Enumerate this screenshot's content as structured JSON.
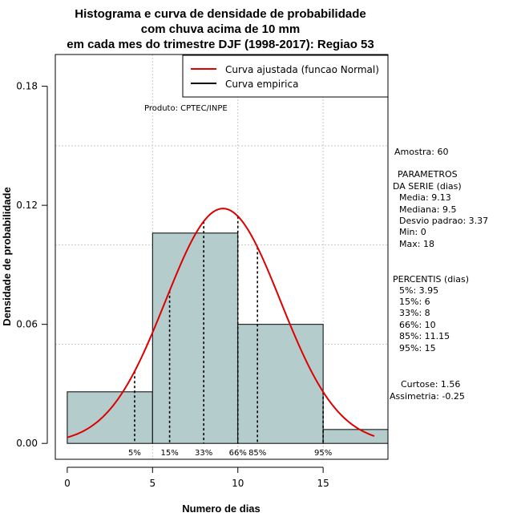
{
  "chart_data": {
    "type": "bar",
    "title_lines": [
      "Histograma e curva de densidade de probabilidade",
      "com chuva acima de 10 mm",
      "em cada mes do trimestre DJF (1998-2017): Regiao 53"
    ],
    "xlabel": "Numero de dias",
    "ylabel": "Densidade de probabilidade",
    "xlim": [
      -0.7,
      18.8
    ],
    "ylim": [
      -0.008,
      0.196
    ],
    "x_ticks": [
      0,
      5,
      10,
      15
    ],
    "y_ticks": [
      0.0,
      0.06,
      0.12,
      0.18
    ],
    "y_tick_labels": [
      "0.00",
      "0.06",
      "0.12",
      "0.18"
    ],
    "grid_x": [
      5,
      10,
      15
    ],
    "grid_y": [
      0.05,
      0.1,
      0.15
    ],
    "grid": true,
    "bins": [
      {
        "x0": 0,
        "x1": 5,
        "density": 0.026
      },
      {
        "x0": 5,
        "x1": 10,
        "density": 0.106
      },
      {
        "x0": 10,
        "x1": 15,
        "density": 0.06
      },
      {
        "x0": 15,
        "x1": 20,
        "density": 0.007
      }
    ],
    "normal_curve": {
      "mean": 9.13,
      "sd": 3.37,
      "x_from": 0,
      "x_to": 18
    },
    "percentile_lines": [
      {
        "label": "5%",
        "x": 3.95
      },
      {
        "label": "15%",
        "x": 6
      },
      {
        "label": "33%",
        "x": 8
      },
      {
        "label": "66%",
        "x": 10
      },
      {
        "label": "85%",
        "x": 11.15
      },
      {
        "label": "95%",
        "x": 15
      }
    ],
    "legend": {
      "position": "top-right",
      "entries": [
        {
          "label": "Curva ajustada (funcao Normal)",
          "color": "#dd0000"
        },
        {
          "label": "Curva empirica",
          "color": "#000000"
        }
      ]
    },
    "annotation": "Produto: CPTEC/INPE",
    "colors": {
      "bar_fill": "#b4cccb",
      "curve": "#dd0000",
      "grid": "#c8c8c8",
      "percentile": "#000000"
    }
  },
  "side_panel": {
    "sample": "Amostra: 60",
    "params_title_1": "PARAMETROS",
    "params_title_2": "DA SERIE (dias)",
    "media": "Media: 9.13",
    "mediana": "Mediana: 9.5",
    "desvio": "Desvio padrao: 3.37",
    "min": "Min: 0",
    "max": "Max: 18",
    "percentis_title": "PERCENTIS (dias)",
    "p5": "5%: 3.95",
    "p15": "15%: 6",
    "p33": "33%: 8",
    "p66": "66%: 10",
    "p85": "85%: 11.15",
    "p95": "95%: 15",
    "curtose": "Curtose: 1.56",
    "assimetria": "Assimetria: -0.25"
  }
}
